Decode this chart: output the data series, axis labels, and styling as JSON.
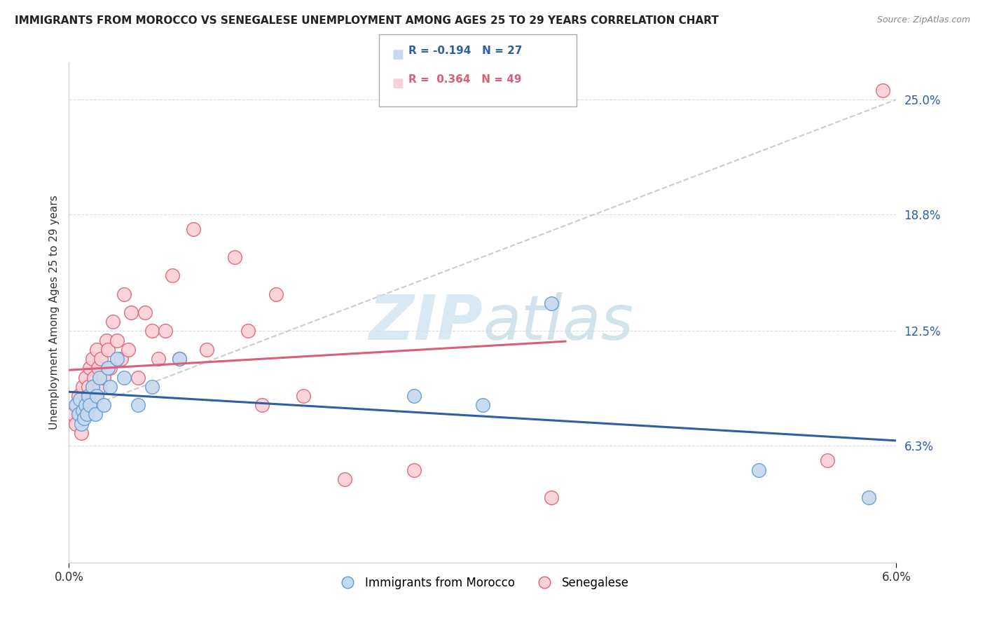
{
  "title": "IMMIGRANTS FROM MOROCCO VS SENEGALESE UNEMPLOYMENT AMONG AGES 25 TO 29 YEARS CORRELATION CHART",
  "source": "Source: ZipAtlas.com",
  "ylabel": "Unemployment Among Ages 25 to 29 years",
  "xlim": [
    0.0,
    6.0
  ],
  "ylim": [
    0.0,
    27.0
  ],
  "yticks": [
    6.3,
    12.5,
    18.8,
    25.0
  ],
  "ytick_labels": [
    "6.3%",
    "12.5%",
    "18.8%",
    "25.0%"
  ],
  "blue_R": "-0.194",
  "blue_N": "27",
  "pink_R": "0.364",
  "pink_N": "49",
  "blue_color": "#c6d9f0",
  "blue_edge": "#5b9bd5",
  "pink_color": "#f9d0d8",
  "pink_edge": "#e06070",
  "blue_line_color": "#2e5fa3",
  "pink_line_color": "#d95f7a",
  "gray_dash_color": "#cccccc",
  "blue_scatter_x": [
    0.05,
    0.07,
    0.08,
    0.09,
    0.1,
    0.11,
    0.12,
    0.13,
    0.14,
    0.15,
    0.17,
    0.19,
    0.2,
    0.22,
    0.25,
    0.28,
    0.3,
    0.35,
    0.4,
    0.5,
    0.6,
    0.8,
    2.5,
    3.0,
    3.5,
    5.0,
    5.8
  ],
  "blue_scatter_y": [
    8.5,
    8.0,
    8.8,
    7.5,
    8.2,
    7.8,
    8.5,
    8.0,
    9.0,
    8.5,
    9.5,
    8.0,
    9.0,
    10.0,
    8.5,
    10.5,
    9.5,
    11.0,
    10.0,
    8.5,
    9.5,
    11.0,
    9.0,
    8.5,
    14.0,
    5.0,
    3.5
  ],
  "pink_scatter_x": [
    0.03,
    0.05,
    0.06,
    0.07,
    0.08,
    0.09,
    0.1,
    0.11,
    0.12,
    0.13,
    0.14,
    0.15,
    0.16,
    0.17,
    0.18,
    0.19,
    0.2,
    0.21,
    0.22,
    0.23,
    0.25,
    0.27,
    0.28,
    0.3,
    0.32,
    0.35,
    0.38,
    0.4,
    0.43,
    0.45,
    0.5,
    0.55,
    0.6,
    0.65,
    0.7,
    0.75,
    0.8,
    0.9,
    1.0,
    1.2,
    1.3,
    1.4,
    1.5,
    1.7,
    2.0,
    2.5,
    3.5,
    5.5,
    5.9
  ],
  "pink_scatter_y": [
    8.0,
    7.5,
    8.5,
    9.0,
    8.0,
    7.0,
    9.5,
    8.5,
    10.0,
    9.0,
    9.5,
    10.5,
    8.5,
    11.0,
    10.0,
    9.0,
    11.5,
    10.5,
    9.5,
    11.0,
    10.0,
    12.0,
    11.5,
    10.5,
    13.0,
    12.0,
    11.0,
    14.5,
    11.5,
    13.5,
    10.0,
    13.5,
    12.5,
    11.0,
    12.5,
    15.5,
    11.0,
    18.0,
    11.5,
    16.5,
    12.5,
    8.5,
    14.5,
    9.0,
    4.5,
    5.0,
    3.5,
    5.5,
    25.5
  ]
}
